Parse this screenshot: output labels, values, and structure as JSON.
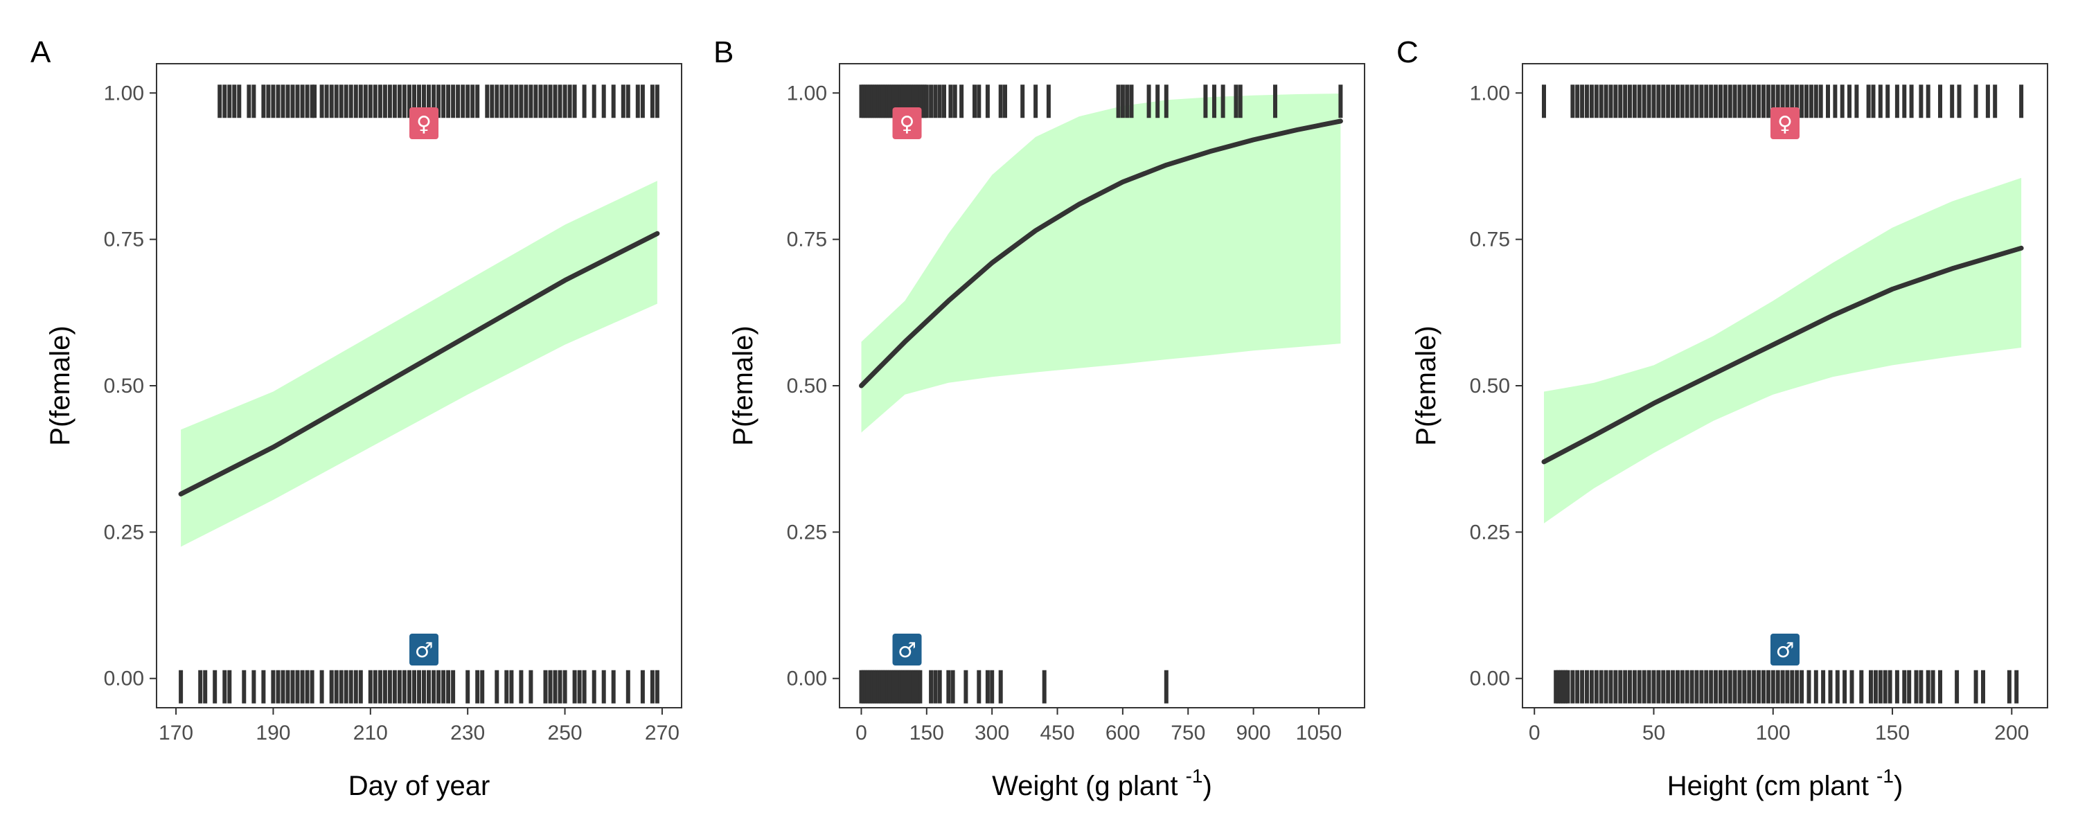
{
  "colors": {
    "band": "#ccffcc",
    "line": "#333333",
    "rug": "#333333",
    "female_badge": "#e45c73",
    "male_badge": "#1f6190",
    "frame": "#333333"
  },
  "chart_data": [
    {
      "type": "line",
      "panel": "A",
      "xlabel": "Day of year",
      "xlabel_sup": "",
      "xlabel_tail": "",
      "ylabel": "P(female)",
      "xlim": [
        166,
        274
      ],
      "ylim": [
        -0.05,
        1.05
      ],
      "xticks": [
        170,
        190,
        210,
        230,
        250,
        270
      ],
      "yticks": [
        0.0,
        0.25,
        0.5,
        0.75,
        1.0
      ],
      "ytick_labels": [
        "0.00",
        "0.25",
        "0.50",
        "0.75",
        "1.00"
      ],
      "x": [
        171,
        190,
        210,
        230,
        250,
        269
      ],
      "fit": [
        0.315,
        0.395,
        0.49,
        0.585,
        0.68,
        0.76
      ],
      "lower": [
        0.225,
        0.305,
        0.395,
        0.485,
        0.57,
        0.64
      ],
      "upper": [
        0.425,
        0.49,
        0.585,
        0.68,
        0.775,
        0.85
      ],
      "female_badge_x": 221,
      "male_badge_x": 221,
      "rug_female": [
        179,
        180,
        181,
        182,
        183,
        185,
        186,
        188,
        189,
        190,
        191,
        192,
        193,
        194,
        195,
        196,
        197,
        198,
        198.5,
        200,
        201,
        202,
        203,
        204,
        205,
        206,
        207,
        208,
        209,
        210,
        211,
        212,
        213,
        214,
        215,
        216,
        217,
        218,
        219,
        220,
        221,
        222,
        223,
        224,
        225,
        226,
        227,
        228,
        229,
        230,
        231,
        232,
        234,
        235,
        236,
        237,
        238,
        239,
        240,
        241,
        242,
        243,
        244,
        245,
        246,
        247,
        248,
        249,
        250,
        251,
        252,
        254,
        256,
        258,
        260,
        262,
        263,
        265,
        266,
        268,
        269
      ],
      "rug_male": [
        171,
        175,
        176,
        178,
        180,
        181,
        184,
        186,
        188,
        190,
        191,
        192,
        193,
        194,
        195,
        196,
        197,
        198,
        200,
        202,
        203,
        204,
        205,
        206,
        207,
        208,
        210,
        211,
        212,
        213,
        214,
        215,
        216,
        217,
        218,
        219,
        220,
        221,
        222,
        223,
        224,
        225,
        226,
        227,
        230,
        232,
        233,
        236,
        238,
        239,
        241,
        243,
        246,
        247,
        248,
        249,
        250,
        252,
        253,
        254,
        256,
        258,
        260,
        263,
        266,
        268,
        269
      ]
    },
    {
      "type": "line",
      "panel": "B",
      "xlabel": "Weight (g plant ",
      "xlabel_sup": "-1",
      "xlabel_tail": ")",
      "ylabel": "P(female)",
      "xlim": [
        -50,
        1155
      ],
      "ylim": [
        -0.05,
        1.05
      ],
      "xticks": [
        0,
        150,
        300,
        450,
        600,
        750,
        900,
        1050
      ],
      "yticks": [
        0.0,
        0.25,
        0.5,
        0.75,
        1.0
      ],
      "ytick_labels": [
        "0.00",
        "0.25",
        "0.50",
        "0.75",
        "1.00"
      ],
      "x": [
        0,
        100,
        200,
        300,
        400,
        500,
        600,
        700,
        800,
        900,
        1000,
        1100
      ],
      "fit": [
        0.5,
        0.575,
        0.645,
        0.71,
        0.765,
        0.81,
        0.848,
        0.877,
        0.9,
        0.92,
        0.937,
        0.952
      ],
      "lower": [
        0.42,
        0.485,
        0.505,
        0.515,
        0.523,
        0.53,
        0.537,
        0.545,
        0.552,
        0.56,
        0.566,
        0.572
      ],
      "upper": [
        0.575,
        0.645,
        0.76,
        0.86,
        0.925,
        0.96,
        0.978,
        0.988,
        0.993,
        0.996,
        0.998,
        0.999
      ],
      "female_badge_x": 105,
      "male_badge_x": 105,
      "rug_female": [
        0,
        5,
        10,
        15,
        20,
        25,
        30,
        35,
        40,
        45,
        50,
        55,
        60,
        65,
        70,
        75,
        80,
        85,
        90,
        95,
        100,
        105,
        110,
        115,
        120,
        125,
        130,
        135,
        140,
        145,
        150,
        160,
        170,
        180,
        190,
        205,
        215,
        230,
        260,
        270,
        290,
        320,
        330,
        370,
        400,
        430,
        590,
        600,
        610,
        620,
        660,
        680,
        700,
        790,
        810,
        830,
        860,
        870,
        950,
        1100
      ],
      "rug_male": [
        0,
        5,
        10,
        15,
        20,
        25,
        30,
        35,
        40,
        45,
        50,
        55,
        60,
        65,
        70,
        75,
        80,
        85,
        90,
        95,
        100,
        105,
        110,
        115,
        120,
        125,
        130,
        135,
        160,
        170,
        180,
        200,
        210,
        240,
        270,
        290,
        300,
        320,
        420,
        700
      ]
    },
    {
      "type": "line",
      "panel": "C",
      "xlabel": "Height (cm plant ",
      "xlabel_sup": "-1",
      "xlabel_tail": ")",
      "ylabel": "P(female)",
      "xlim": [
        -5,
        215
      ],
      "ylim": [
        -0.05,
        1.05
      ],
      "xticks": [
        0,
        50,
        100,
        150,
        200
      ],
      "yticks": [
        0.0,
        0.25,
        0.5,
        0.75,
        1.0
      ],
      "ytick_labels": [
        "0.00",
        "0.25",
        "0.50",
        "0.75",
        "1.00"
      ],
      "x": [
        4,
        25,
        50,
        75,
        100,
        125,
        150,
        175,
        204
      ],
      "fit": [
        0.37,
        0.415,
        0.47,
        0.52,
        0.57,
        0.62,
        0.665,
        0.7,
        0.735
      ],
      "lower": [
        0.265,
        0.325,
        0.385,
        0.44,
        0.485,
        0.515,
        0.535,
        0.55,
        0.565
      ],
      "upper": [
        0.49,
        0.505,
        0.535,
        0.585,
        0.645,
        0.71,
        0.77,
        0.815,
        0.855
      ],
      "female_badge_x": 105,
      "male_badge_x": 105,
      "rug_female": [
        4,
        16,
        18,
        20,
        22,
        24,
        26,
        28,
        30,
        32,
        34,
        36,
        38,
        40,
        42,
        44,
        46,
        48,
        50,
        52,
        54,
        56,
        58,
        60,
        62,
        64,
        66,
        68,
        70,
        72,
        74,
        76,
        78,
        80,
        82,
        84,
        86,
        88,
        90,
        92,
        94,
        96,
        98,
        100,
        102,
        104,
        106,
        108,
        110,
        112,
        114,
        116,
        118,
        120,
        123,
        126,
        129,
        132,
        135,
        140,
        142,
        145,
        148,
        152,
        155,
        158,
        162,
        165,
        170,
        175,
        178,
        185,
        190,
        193,
        204
      ],
      "rug_male": [
        9,
        10,
        11,
        12,
        13,
        14,
        16,
        18,
        20,
        22,
        24,
        26,
        28,
        30,
        32,
        34,
        36,
        38,
        40,
        42,
        44,
        46,
        48,
        50,
        52,
        54,
        56,
        58,
        60,
        62,
        64,
        66,
        68,
        70,
        72,
        74,
        76,
        78,
        80,
        82,
        84,
        86,
        88,
        90,
        92,
        94,
        96,
        98,
        100,
        102,
        104,
        106,
        108,
        110,
        112,
        115,
        118,
        121,
        124,
        127,
        130,
        133,
        137,
        141,
        143,
        145,
        147,
        149,
        152,
        155,
        157,
        160,
        162,
        165,
        167,
        170,
        177,
        185,
        188,
        199,
        202
      ]
    }
  ]
}
